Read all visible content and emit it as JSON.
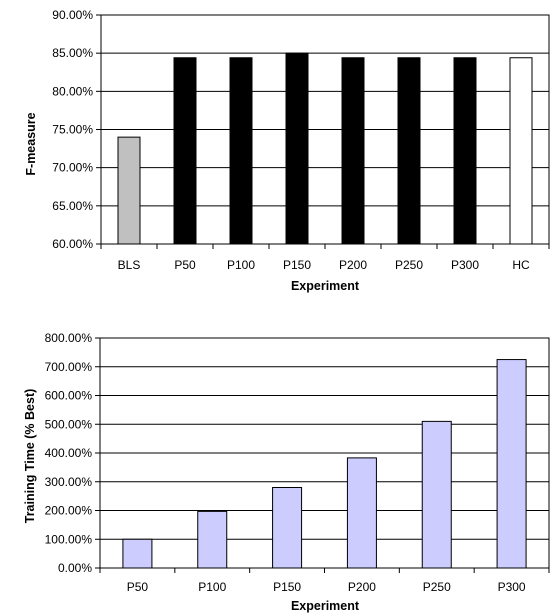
{
  "chart_data": [
    {
      "type": "bar",
      "xlabel": "Experiment",
      "ylabel": "F-measure",
      "ylim": [
        60,
        90
      ],
      "yticks": [
        "60.00%",
        "65.00%",
        "70.00%",
        "75.00%",
        "80.00%",
        "85.00%",
        "90.00%"
      ],
      "categories": [
        "BLS",
        "P50",
        "P100",
        "P150",
        "P200",
        "P250",
        "P300",
        "HC"
      ],
      "values": [
        74.0,
        84.4,
        84.4,
        85.0,
        84.4,
        84.4,
        84.4,
        84.4
      ],
      "bar_colors": [
        "#c0c0c0",
        "#000000",
        "#000000",
        "#000000",
        "#000000",
        "#000000",
        "#000000",
        "#ffffff"
      ],
      "grid": "horizontal"
    },
    {
      "type": "bar",
      "xlabel": "Experiment",
      "ylabel": "Training Time (% Best)",
      "ylim": [
        0,
        800
      ],
      "yticks": [
        "0.00%",
        "100.00%",
        "200.00%",
        "300.00%",
        "400.00%",
        "500.00%",
        "600.00%",
        "700.00%",
        "800.00%"
      ],
      "categories": [
        "P50",
        "P100",
        "P150",
        "P200",
        "P250",
        "P300"
      ],
      "values": [
        100,
        197,
        280,
        383,
        510,
        725
      ],
      "bar_colors": [
        "#ccccff",
        "#ccccff",
        "#ccccff",
        "#ccccff",
        "#ccccff",
        "#ccccff"
      ],
      "grid": "horizontal"
    }
  ]
}
